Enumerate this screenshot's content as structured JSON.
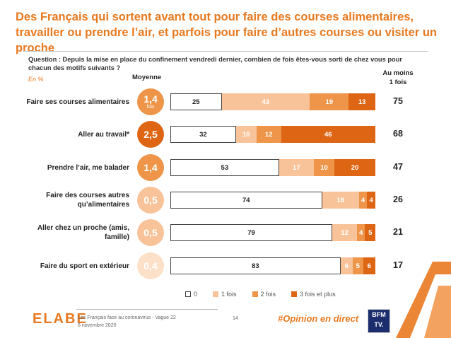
{
  "title": "Des Français qui sortent avant tout pour faire des courses alimentaires, travailler ou prendre l’air, et parfois pour faire d’autres courses ou visiter un proche",
  "question": "Question : Depuis la mise en place du confinement vendredi dernier, combien de fois êtes-vous sorti de chez vous pour chacun des motifs suivants ?",
  "unit_label": "En %",
  "mean_header": "Moyenne",
  "atleast_header_line1": "Au moins",
  "atleast_header_line2": "1 fois",
  "mean_sub_first": "fois",
  "colors": {
    "accent": "#e8791f",
    "zero": "#ffffff",
    "once": "#f9c39a",
    "twice": "#ee9549",
    "three_plus": "#dd6514"
  },
  "chart_data": {
    "type": "bar",
    "orientation": "horizontal",
    "stacked": true,
    "categories": [
      "Faire ses courses alimentaires",
      "Aller au travail*",
      "Prendre l’air, me balader",
      "Faire des courses autres qu’alimentaires",
      "Aller chez un proche (amis, famille)",
      "Faire du sport en extérieur"
    ],
    "series": [
      {
        "name": "0",
        "values": [
          25,
          32,
          53,
          74,
          79,
          83
        ]
      },
      {
        "name": "1 fois",
        "values": [
          43,
          10,
          17,
          18,
          12,
          6
        ]
      },
      {
        "name": "2 fois",
        "values": [
          19,
          12,
          10,
          4,
          4,
          5
        ]
      },
      {
        "name": "3 fois et plus",
        "values": [
          13,
          46,
          20,
          4,
          5,
          6
        ]
      }
    ],
    "mean": [
      "1,4",
      "2,5",
      "1,4",
      "0,5",
      "0,5",
      "0,4"
    ],
    "mean_colors": [
      "#ee9549",
      "#dd6514",
      "#ee9549",
      "#f9c39a",
      "#f9c39a",
      "#fce0c8"
    ],
    "at_least_once": [
      75,
      68,
      47,
      26,
      21,
      17
    ],
    "legend_position": "bottom"
  },
  "footer": {
    "logo": "ELABE",
    "source_line1": "Les Français face au coronavirus - Vague 22",
    "source_line2": "6 novembre 2020",
    "page": "14",
    "hashtag": "#Opinion en direct",
    "partner_line1": "BFM",
    "partner_line2": "TV."
  }
}
